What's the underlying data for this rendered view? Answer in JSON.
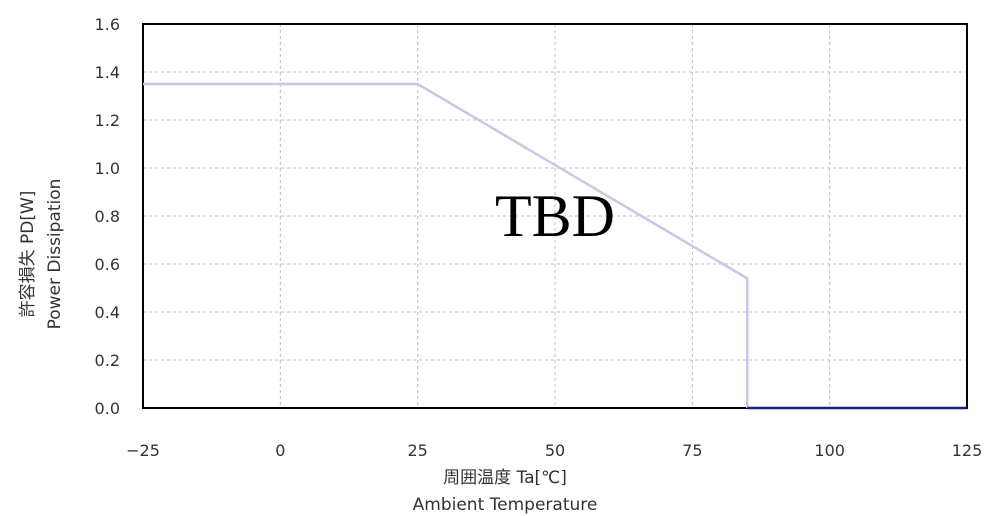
{
  "chart_data": {
    "type": "line",
    "x_axis": {
      "label_jp": "周囲温度 Ta[℃]",
      "label_en": "Ambient Temperature",
      "range": [
        -25,
        125
      ],
      "ticks": [
        "−25",
        "0",
        "25",
        "50",
        "75",
        "100",
        "125"
      ]
    },
    "y_axis": {
      "label_jp": "許容損失 PD[W]",
      "label_en": "Power Dissipation",
      "range": [
        0,
        1.6
      ],
      "ticks": [
        "0.0",
        "0.2",
        "0.4",
        "0.6",
        "0.8",
        "1.0",
        "1.2",
        "1.4",
        "1.6"
      ]
    },
    "grid": true,
    "overlay_text": "TBD",
    "series": [
      {
        "color": "#c8c8e6",
        "x": [
          -25,
          25,
          85,
          85
        ],
        "y": [
          1.35,
          1.35,
          0.54,
          0.0
        ]
      },
      {
        "color": "#1a1a8c",
        "x": [
          85,
          125
        ],
        "y": [
          0.0,
          0.0
        ]
      }
    ]
  }
}
